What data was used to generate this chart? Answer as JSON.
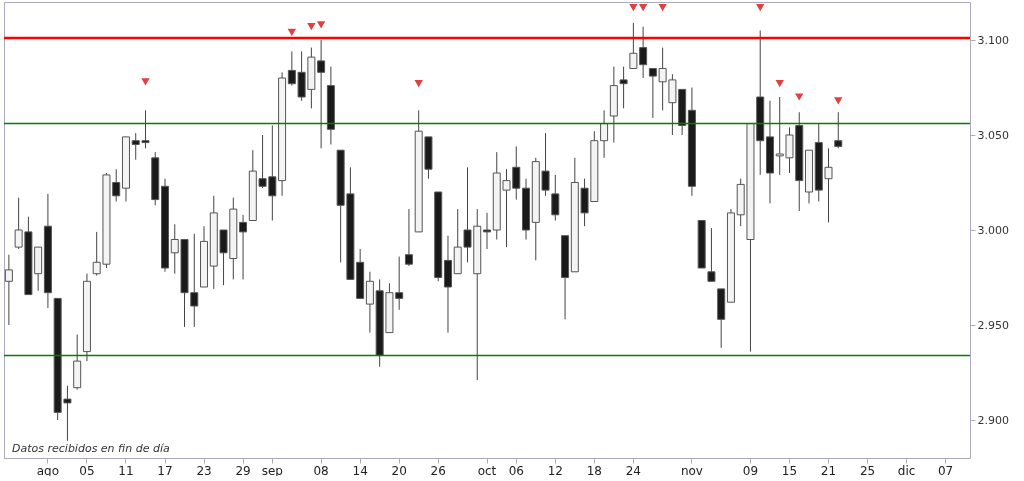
{
  "chart_data": {
    "type": "candlestick",
    "categories": [
      null,
      null,
      null,
      null,
      "ago",
      null,
      null,
      null,
      "05",
      null,
      null,
      null,
      "11",
      null,
      null,
      null,
      "17",
      null,
      null,
      null,
      "23",
      null,
      null,
      null,
      "29",
      null,
      null,
      "sep",
      null,
      null,
      null,
      null,
      "08",
      null,
      null,
      null,
      "14",
      null,
      null,
      null,
      "20",
      null,
      null,
      null,
      "26",
      null,
      null,
      null,
      null,
      "oct",
      null,
      null,
      "06",
      null,
      null,
      null,
      "12",
      null,
      null,
      null,
      "18",
      null,
      null,
      null,
      "24",
      null,
      null,
      null,
      null,
      null,
      "nov",
      null,
      null,
      null,
      null,
      null,
      "09",
      null,
      null,
      null,
      "15",
      null,
      null,
      null,
      "21",
      null,
      null,
      null,
      "25",
      null,
      null,
      null,
      "dic",
      null,
      null,
      null,
      "07",
      null,
      null
    ],
    "ohlc": [
      [
        2973,
        2987,
        2950,
        2979
      ],
      [
        2991,
        3017,
        2990,
        3000
      ],
      [
        2999,
        3007,
        2966,
        2966
      ],
      [
        2977,
        2991,
        2968,
        2991
      ],
      [
        3002,
        3019,
        2959,
        2967
      ],
      [
        2964,
        2964,
        2900,
        2904
      ],
      [
        2911,
        2918,
        2889,
        2909
      ],
      [
        2917,
        2945,
        2916,
        2931
      ],
      [
        2936,
        2977,
        2931,
        2973
      ],
      [
        2977,
        2999,
        2976,
        2983
      ],
      [
        2982,
        3030,
        2980,
        3029
      ],
      [
        3025,
        3032,
        3015,
        3018
      ],
      [
        3022,
        3049,
        3015,
        3049
      ],
      [
        3047,
        3051,
        3037,
        3045
      ],
      [
        3047,
        3063,
        3043,
        3046
      ],
      [
        3038,
        3041,
        3013,
        3016
      ],
      [
        3023,
        3027,
        2978,
        2980
      ],
      [
        2988,
        3003,
        2977,
        2995
      ],
      [
        2995,
        2995,
        2949,
        2967
      ],
      [
        2967,
        2998,
        2949,
        2960
      ],
      [
        2970,
        3002,
        2970,
        2994
      ],
      [
        2981,
        3018,
        2969,
        3009
      ],
      [
        3000,
        3000,
        2971,
        2988
      ],
      [
        2985,
        3017,
        2974,
        3011
      ],
      [
        3004,
        3008,
        2974,
        2999
      ],
      [
        3005,
        3042,
        3005,
        3031
      ],
      [
        3027,
        3050,
        3022,
        3023
      ],
      [
        3028,
        3055,
        3005,
        3018
      ],
      [
        3026,
        3083,
        3018,
        3080
      ],
      [
        3084,
        3094,
        3076,
        3077
      ],
      [
        3083,
        3094,
        3068,
        3070
      ],
      [
        3074,
        3096,
        3064,
        3091
      ],
      [
        3089,
        3100,
        3043,
        3083
      ],
      [
        3076,
        3086,
        3045,
        3053
      ],
      [
        3042,
        3042,
        2983,
        3013
      ],
      [
        3019,
        3033,
        2974,
        2974
      ],
      [
        2983,
        2990,
        2964,
        2964
      ],
      [
        2961,
        2978,
        2946,
        2973
      ],
      [
        2968,
        2974,
        2928,
        2934
      ],
      [
        2946,
        2972,
        2946,
        2967
      ],
      [
        2967,
        2986,
        2958,
        2964
      ],
      [
        2987,
        3011,
        2981,
        2982
      ],
      [
        2999,
        3063,
        2999,
        3052
      ],
      [
        3049,
        3049,
        3027,
        3032
      ],
      [
        3020,
        3020,
        2973,
        2975
      ],
      [
        2984,
        2997,
        2946,
        2970
      ],
      [
        2977,
        3011,
        2977,
        2991
      ],
      [
        3000,
        3033,
        2983,
        2991
      ],
      [
        2977,
        3011,
        2921,
        3002
      ],
      [
        3000,
        3009,
        2990,
        2999
      ],
      [
        3000,
        3041,
        2995,
        3030
      ],
      [
        3021,
        3032,
        2991,
        3026
      ],
      [
        3033,
        3044,
        3016,
        3022
      ],
      [
        3022,
        3027,
        2995,
        3000
      ],
      [
        3004,
        3038,
        2984,
        3036
      ],
      [
        3031,
        3051,
        3018,
        3021
      ],
      [
        3019,
        3029,
        3005,
        3008
      ],
      [
        2997,
        2997,
        2953,
        2975
      ],
      [
        2978,
        3038,
        2978,
        3025
      ],
      [
        3022,
        3027,
        3002,
        3009
      ],
      [
        3015,
        3052,
        3015,
        3047
      ],
      [
        3047,
        3063,
        3038,
        3056
      ],
      [
        3060,
        3086,
        3046,
        3076
      ],
      [
        3079,
        3086,
        3064,
        3077
      ],
      [
        3085,
        3109,
        3085,
        3093
      ],
      [
        3096,
        3107,
        3080,
        3087
      ],
      [
        3085,
        3085,
        3059,
        3081
      ],
      [
        3078,
        3096,
        3063,
        3085
      ],
      [
        3067,
        3082,
        3050,
        3079
      ],
      [
        3074,
        3074,
        3050,
        3055
      ],
      [
        3063,
        3075,
        3018,
        3023
      ],
      [
        3005,
        3005,
        2980,
        2980
      ],
      [
        2978,
        3001,
        2973,
        2973
      ],
      [
        2969,
        2969,
        2938,
        2953
      ],
      [
        2962,
        3011,
        2962,
        3009
      ],
      [
        3008,
        3027,
        3002,
        3024
      ],
      [
        2995,
        3056,
        2936,
        3056
      ],
      [
        3070,
        3105,
        3029,
        3047
      ],
      [
        3049,
        3068,
        3014,
        3030
      ],
      [
        3039,
        3070,
        3029,
        3040
      ],
      [
        3038,
        3054,
        3030,
        3050
      ],
      [
        3055,
        3062,
        3010,
        3026
      ],
      [
        3020,
        3042,
        3014,
        3042
      ],
      [
        3046,
        3056,
        3015,
        3021
      ],
      [
        3027,
        3043,
        3004,
        3033
      ],
      [
        3047,
        3062,
        3043,
        3044
      ],
      null,
      null,
      null,
      null,
      null,
      null,
      null,
      null,
      null,
      null,
      null,
      null,
      null
    ],
    "series": [
      {
        "type": "scatter",
        "marker": "triangle",
        "color": "#e04040",
        "values": [
          null,
          null,
          null,
          null,
          null,
          null,
          null,
          null,
          null,
          null,
          null,
          null,
          null,
          null,
          3078,
          null,
          null,
          null,
          null,
          null,
          null,
          null,
          null,
          null,
          null,
          null,
          null,
          null,
          null,
          3104,
          null,
          3107,
          3108,
          null,
          null,
          null,
          null,
          null,
          null,
          null,
          null,
          null,
          3077,
          null,
          null,
          null,
          null,
          null,
          null,
          null,
          null,
          null,
          null,
          null,
          null,
          null,
          null,
          null,
          null,
          null,
          null,
          null,
          null,
          null,
          3117,
          3117,
          null,
          3117,
          null,
          null,
          null,
          null,
          null,
          null,
          null,
          null,
          null,
          3117,
          null,
          3077,
          null,
          3070,
          null,
          null,
          null,
          3068,
          null,
          null,
          null,
          null,
          null,
          null,
          null,
          null,
          null,
          null,
          null,
          null,
          null
        ]
      }
    ],
    "ylim": [
      2880,
      3120
    ],
    "yticks": [
      {
        "value": 2900,
        "label": "2.900"
      },
      {
        "value": 2950,
        "label": "2.950"
      },
      {
        "value": 3000,
        "label": "3.000"
      },
      {
        "value": 3050,
        "label": "3.050"
      },
      {
        "value": 3100,
        "label": "3.100"
      }
    ],
    "ref_lines": [
      {
        "axis": "y",
        "value": 3101,
        "color": "#ff0000"
      },
      {
        "axis": "y",
        "value": 3056,
        "color": "#008000"
      },
      {
        "axis": "y",
        "value": 2934,
        "color": "#008000"
      }
    ],
    "annotations": [
      "Datos recibidos en fin de día"
    ],
    "grid": false
  }
}
